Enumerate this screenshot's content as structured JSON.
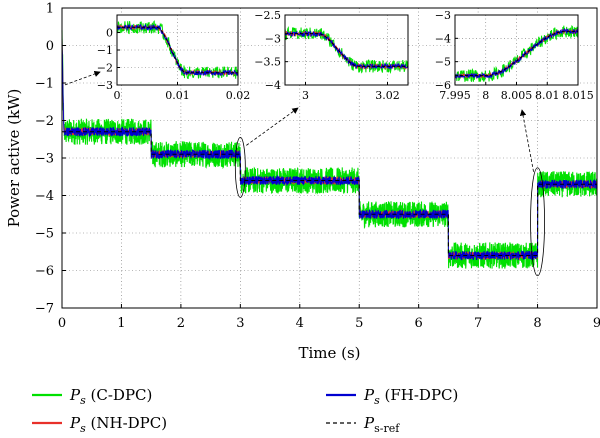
{
  "chart_data": [
    {
      "id": "main",
      "type": "line",
      "xlabel": "Time (s)",
      "ylabel": "Power active (kW)",
      "xlim": [
        0,
        9
      ],
      "ylim": [
        -7,
        1
      ],
      "xticks": [
        "0",
        "1",
        "2",
        "3",
        "4",
        "5",
        "6",
        "7",
        "8",
        "9"
      ],
      "yticks": [
        "1",
        "0",
        "−1",
        "−2",
        "−3",
        "−4",
        "−5",
        "−6",
        "−7"
      ],
      "grid": true,
      "reference": {
        "x": [
          0,
          1.5,
          1.5,
          3.0,
          3.0,
          5.0,
          5.0,
          6.5,
          6.5,
          8.0,
          8.0,
          9.0
        ],
        "y": [
          -2.3,
          -2.3,
          -2.9,
          -2.9,
          -3.6,
          -3.6,
          -4.5,
          -4.5,
          -5.6,
          -5.6,
          -3.7,
          -3.7
        ]
      },
      "series": [
        {
          "name": "P_s (C-DPC)",
          "color": "#00e000",
          "ripple_kw": 0.35
        },
        {
          "name": "P_s (NH-DPC)",
          "color": "#e8302a",
          "ripple_kw": 0.1
        },
        {
          "name": "P_s (FH-DPC)",
          "color": "#0000d0",
          "ripple_kw": 0.12
        },
        {
          "name": "P_s-ref",
          "color": "#000000",
          "style": "dashed"
        }
      ]
    },
    {
      "id": "inset1",
      "type": "line",
      "xlim": [
        0,
        0.02
      ],
      "ylim": [
        -3,
        1
      ],
      "xticks": [
        "0",
        "0.01",
        "0.02"
      ],
      "yticks": [
        "0",
        "−1",
        "−2",
        "−3"
      ],
      "grid": true,
      "transition": {
        "from": 0.3,
        "to": -2.3,
        "t0": 0.0065,
        "t1": 0.0115
      }
    },
    {
      "id": "inset2",
      "type": "line",
      "xlim": [
        2.995,
        3.025
      ],
      "ylim": [
        -4,
        -2.5
      ],
      "xticks": [
        "3",
        "3.02"
      ],
      "yticks": [
        "−2.5",
        "−3",
        "−3.5",
        "−4"
      ],
      "grid": true,
      "transition": {
        "from": -2.9,
        "to": -3.6,
        "t0": 3.003,
        "t1": 3.013
      }
    },
    {
      "id": "inset3",
      "type": "line",
      "xlim": [
        7.995,
        8.015
      ],
      "ylim": [
        -6,
        -3
      ],
      "xticks": [
        "7.995",
        "8",
        "8.005",
        "8.01",
        "8.015"
      ],
      "yticks": [
        "−3",
        "−4",
        "−5",
        "−6"
      ],
      "grid": true,
      "transition": {
        "from": -5.6,
        "to": -3.7,
        "t0": 8.0,
        "t1": 8.013
      }
    }
  ],
  "legend": {
    "items": [
      {
        "symbol": "P",
        "sub": "s",
        "suffix": " (C-DPC)",
        "color": "#00e000"
      },
      {
        "symbol": "P",
        "sub": "s",
        "suffix": " (FH-DPC)",
        "color": "#0000d0"
      },
      {
        "symbol": "P",
        "sub": "s",
        "suffix": " (NH-DPC)",
        "color": "#e8302a"
      },
      {
        "symbol": "P",
        "sub": "s-ref",
        "suffix": "",
        "color": "#000000",
        "dashed": true
      }
    ]
  }
}
